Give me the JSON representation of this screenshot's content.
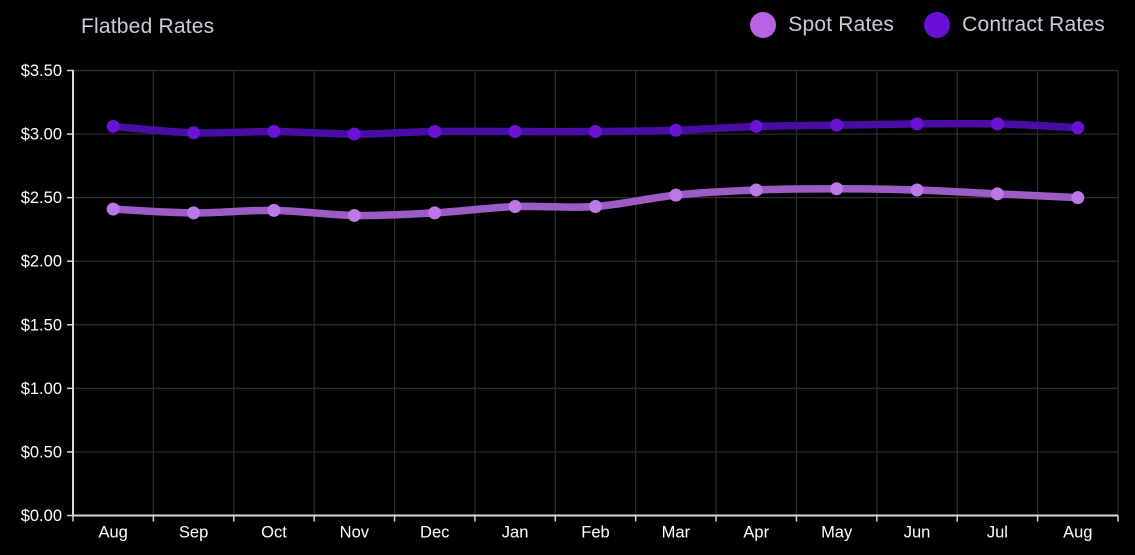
{
  "title": "Flatbed Rates",
  "legend": [
    {
      "label": "Spot Rates",
      "color": "#b763e3"
    },
    {
      "label": "Contract Rates",
      "color": "#6a10d6"
    }
  ],
  "chart_data": {
    "type": "line",
    "title": "Flatbed Rates",
    "categories": [
      "Aug",
      "Sep",
      "Oct",
      "Nov",
      "Dec",
      "Jan",
      "Feb",
      "Mar",
      "Apr",
      "May",
      "Jun",
      "Jul",
      "Aug"
    ],
    "series": [
      {
        "name": "Spot Rates",
        "values": [
          2.41,
          2.38,
          2.4,
          2.36,
          2.38,
          2.43,
          2.43,
          2.52,
          2.56,
          2.57,
          2.56,
          2.53,
          2.5
        ],
        "line_color": "#9d5cc4",
        "dot_color": "#bd77e6"
      },
      {
        "name": "Contract Rates",
        "values": [
          3.06,
          3.01,
          3.02,
          3.0,
          3.02,
          3.02,
          3.02,
          3.03,
          3.06,
          3.07,
          3.08,
          3.08,
          3.05
        ],
        "line_color": "#4a0da3",
        "dot_color": "#6c11d6"
      }
    ],
    "xlabel": "",
    "ylabel": "",
    "ylim": [
      0,
      3.5
    ],
    "y_tick_step": 0.5,
    "y_tick_labels": [
      "$0.00",
      "$0.50",
      "$1.00",
      "$1.50",
      "$2.00",
      "$2.50",
      "$3.00",
      "$3.50"
    ],
    "grid": true,
    "legend_position": "top-right"
  },
  "colors": {
    "background": "#000000",
    "grid": "#2d2d2d",
    "axis": "#d9d9d9",
    "tick_label": "#ffffff",
    "heading_text": "#c9ced6"
  }
}
